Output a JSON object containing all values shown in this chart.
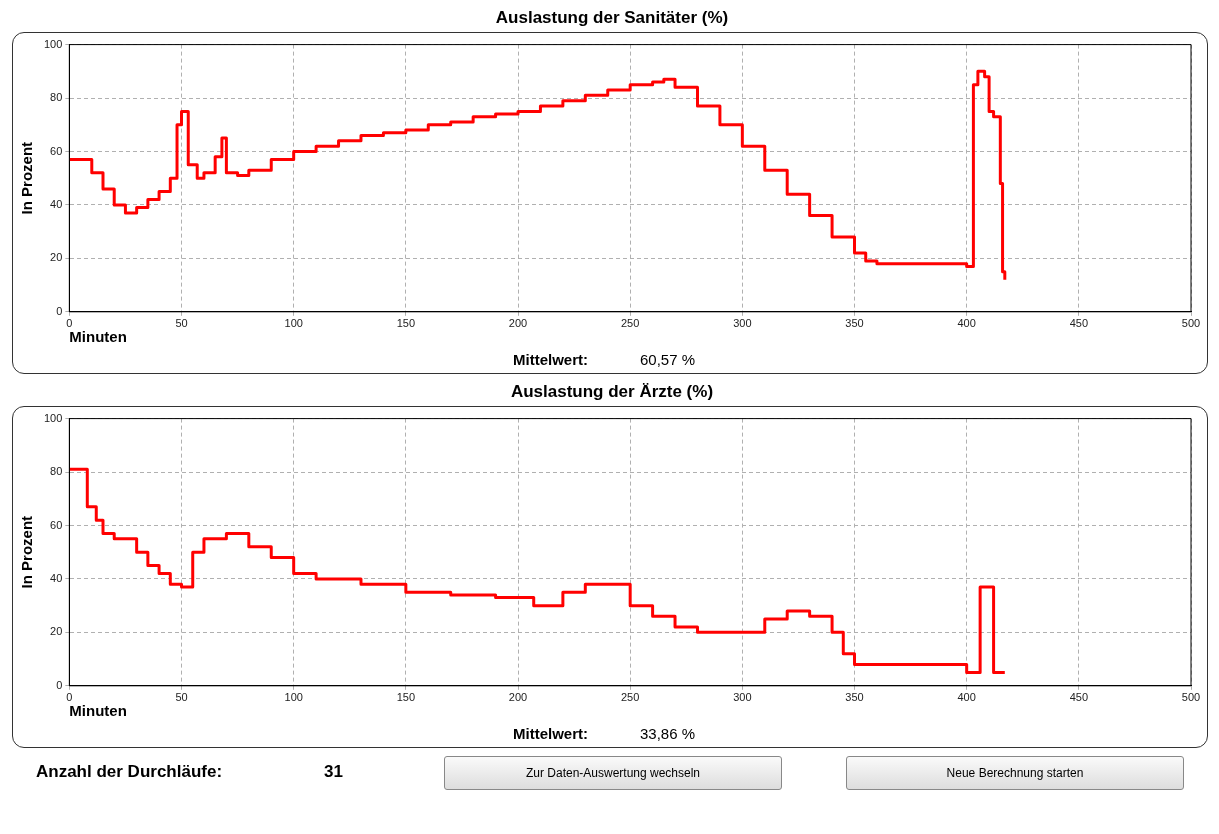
{
  "chart_data": [
    {
      "type": "step",
      "title": "Auslastung der Sanitäter (%)",
      "xlabel": "Minuten",
      "ylabel": "In Prozent",
      "annotations": [
        "Mittelwert:",
        "60,57 %"
      ],
      "xlim": [
        0,
        500
      ],
      "xticks": [
        0,
        50,
        100,
        150,
        200,
        250,
        300,
        350,
        400,
        450,
        500
      ],
      "ylim": [
        0,
        100
      ],
      "yticks": [
        0,
        20,
        40,
        60,
        80,
        100
      ],
      "grid": true,
      "x": [
        0,
        5,
        10,
        15,
        20,
        25,
        30,
        35,
        40,
        45,
        48,
        50,
        53,
        57,
        60,
        65,
        68,
        70,
        75,
        80,
        90,
        100,
        110,
        120,
        130,
        140,
        150,
        160,
        170,
        180,
        190,
        200,
        210,
        220,
        230,
        240,
        250,
        260,
        265,
        270,
        280,
        290,
        300,
        310,
        320,
        330,
        340,
        350,
        355,
        360,
        370,
        380,
        390,
        400,
        403,
        405,
        408,
        410,
        412,
        415,
        416,
        417
      ],
      "series": [
        {
          "color": "#ff0000",
          "values": [
            57,
            57,
            52,
            46,
            40,
            37,
            39,
            42,
            45,
            50,
            70,
            75,
            55,
            50,
            52,
            58,
            65,
            52,
            51,
            53,
            57,
            60,
            62,
            64,
            66,
            67,
            68,
            70,
            71,
            73,
            74,
            75,
            77,
            79,
            81,
            83,
            85,
            86,
            87,
            84,
            77,
            70,
            62,
            53,
            44,
            36,
            28,
            22,
            19,
            18,
            18,
            18,
            18,
            17,
            85,
            90,
            88,
            75,
            73,
            48,
            15,
            12
          ]
        }
      ]
    },
    {
      "type": "step",
      "title": "Auslastung der Ärzte (%)",
      "xlabel": "Minuten",
      "ylabel": "In Prozent",
      "annotations": [
        "Mittelwert:",
        "33,86 %"
      ],
      "xlim": [
        0,
        500
      ],
      "xticks": [
        0,
        50,
        100,
        150,
        200,
        250,
        300,
        350,
        400,
        450,
        500
      ],
      "ylim": [
        0,
        100
      ],
      "yticks": [
        0,
        20,
        40,
        60,
        80,
        100
      ],
      "grid": true,
      "x": [
        0,
        8,
        12,
        15,
        20,
        30,
        35,
        40,
        45,
        50,
        55,
        60,
        70,
        80,
        90,
        100,
        110,
        120,
        130,
        150,
        170,
        190,
        207,
        220,
        230,
        240,
        250,
        260,
        270,
        280,
        300,
        310,
        320,
        330,
        340,
        345,
        350,
        380,
        400,
        405,
        406,
        410,
        412,
        417
      ],
      "series": [
        {
          "color": "#ff0000",
          "values": [
            81,
            67,
            62,
            57,
            55,
            50,
            45,
            42,
            38,
            37,
            50,
            55,
            57,
            52,
            48,
            42,
            40,
            40,
            38,
            35,
            34,
            33,
            30,
            35,
            38,
            38,
            30,
            26,
            22,
            20,
            20,
            25,
            28,
            26,
            20,
            12,
            8,
            8,
            5,
            5,
            37,
            37,
            5,
            5
          ]
        }
      ]
    },
    {
      "type": "other",
      "annotations": [
        "Anzahl der Durchläufe:",
        "31",
        "Zur Daten-Auswertung wechseln",
        "Neue Berechnung starten"
      ]
    }
  ]
}
